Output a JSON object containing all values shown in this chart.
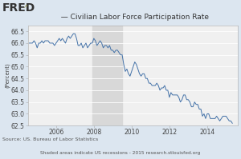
{
  "title": "  — Civilian Labor Force Participation Rate",
  "ylabel": "(Percent)",
  "source_text": "Source: US. Bureau of Labor Statistics",
  "footnote_text": "Shaded areas indicate US recessions - 2015 research.stlouisfed.org",
  "ylim": [
    62.5,
    66.75
  ],
  "yticks": [
    62.5,
    63.0,
    63.5,
    64.0,
    64.5,
    65.0,
    65.5,
    66.0,
    66.5
  ],
  "xlim_start": 2004.5,
  "xlim_end": 2015.6,
  "xticks": [
    2006,
    2008,
    2010,
    2012,
    2014
  ],
  "recession_start": 2007.917,
  "recession_end": 2009.5,
  "line_color": "#4472a8",
  "recession_color": "#d8d8d8",
  "bg_color": "#dce6f0",
  "plot_bg_color": "#f0f0f0",
  "title_fontsize": 6.5,
  "axis_fontsize": 5.5,
  "ylabel_fontsize": 5.0,
  "source_fontsize": 4.5,
  "footnote_fontsize": 4.2,
  "fred_fontsize": 10,
  "series": [
    [
      2004.583,
      66.0
    ],
    [
      2004.667,
      66.0
    ],
    [
      2004.75,
      66.0
    ],
    [
      2004.833,
      66.1
    ],
    [
      2004.917,
      66.0
    ],
    [
      2005.0,
      65.8
    ],
    [
      2005.083,
      66.0
    ],
    [
      2005.167,
      66.0
    ],
    [
      2005.25,
      66.1
    ],
    [
      2005.333,
      66.0
    ],
    [
      2005.417,
      66.1
    ],
    [
      2005.5,
      66.1
    ],
    [
      2005.583,
      66.1
    ],
    [
      2005.667,
      66.0
    ],
    [
      2005.75,
      66.0
    ],
    [
      2005.833,
      66.0
    ],
    [
      2005.917,
      65.9
    ],
    [
      2006.0,
      66.0
    ],
    [
      2006.083,
      66.1
    ],
    [
      2006.167,
      66.2
    ],
    [
      2006.25,
      66.1
    ],
    [
      2006.333,
      66.2
    ],
    [
      2006.417,
      66.1
    ],
    [
      2006.5,
      66.0
    ],
    [
      2006.583,
      66.2
    ],
    [
      2006.667,
      66.3
    ],
    [
      2006.75,
      66.2
    ],
    [
      2006.833,
      66.3
    ],
    [
      2006.917,
      66.4
    ],
    [
      2007.0,
      66.4
    ],
    [
      2007.083,
      66.2
    ],
    [
      2007.167,
      65.9
    ],
    [
      2007.25,
      65.9
    ],
    [
      2007.333,
      66.0
    ],
    [
      2007.417,
      65.8
    ],
    [
      2007.5,
      65.9
    ],
    [
      2007.583,
      66.0
    ],
    [
      2007.667,
      65.8
    ],
    [
      2007.75,
      65.9
    ],
    [
      2007.833,
      66.0
    ],
    [
      2007.917,
      66.0
    ],
    [
      2008.0,
      66.2
    ],
    [
      2008.083,
      66.1
    ],
    [
      2008.167,
      65.9
    ],
    [
      2008.25,
      66.0
    ],
    [
      2008.333,
      66.1
    ],
    [
      2008.417,
      66.0
    ],
    [
      2008.5,
      65.8
    ],
    [
      2008.583,
      65.9
    ],
    [
      2008.667,
      65.9
    ],
    [
      2008.75,
      65.8
    ],
    [
      2008.833,
      65.9
    ],
    [
      2008.917,
      65.7
    ],
    [
      2009.0,
      65.7
    ],
    [
      2009.083,
      65.6
    ],
    [
      2009.167,
      65.7
    ],
    [
      2009.25,
      65.7
    ],
    [
      2009.333,
      65.6
    ],
    [
      2009.417,
      65.5
    ],
    [
      2009.5,
      65.5
    ],
    [
      2009.583,
      65.1
    ],
    [
      2009.667,
      64.8
    ],
    [
      2009.75,
      64.9
    ],
    [
      2009.833,
      64.7
    ],
    [
      2009.917,
      64.6
    ],
    [
      2010.0,
      64.8
    ],
    [
      2010.083,
      65.0
    ],
    [
      2010.167,
      65.2
    ],
    [
      2010.25,
      65.1
    ],
    [
      2010.333,
      64.9
    ],
    [
      2010.417,
      64.7
    ],
    [
      2010.5,
      64.6
    ],
    [
      2010.583,
      64.7
    ],
    [
      2010.667,
      64.7
    ],
    [
      2010.75,
      64.5
    ],
    [
      2010.833,
      64.5
    ],
    [
      2010.917,
      64.3
    ],
    [
      2011.0,
      64.3
    ],
    [
      2011.083,
      64.2
    ],
    [
      2011.167,
      64.2
    ],
    [
      2011.25,
      64.2
    ],
    [
      2011.333,
      64.3
    ],
    [
      2011.417,
      64.2
    ],
    [
      2011.5,
      64.0
    ],
    [
      2011.583,
      64.1
    ],
    [
      2011.667,
      64.1
    ],
    [
      2011.75,
      64.2
    ],
    [
      2011.833,
      64.0
    ],
    [
      2011.917,
      64.0
    ],
    [
      2012.0,
      63.7
    ],
    [
      2012.083,
      63.9
    ],
    [
      2012.167,
      63.8
    ],
    [
      2012.25,
      63.8
    ],
    [
      2012.333,
      63.8
    ],
    [
      2012.417,
      63.8
    ],
    [
      2012.5,
      63.7
    ],
    [
      2012.583,
      63.5
    ],
    [
      2012.667,
      63.6
    ],
    [
      2012.75,
      63.8
    ],
    [
      2012.833,
      63.8
    ],
    [
      2012.917,
      63.6
    ],
    [
      2013.0,
      63.6
    ],
    [
      2013.083,
      63.5
    ],
    [
      2013.167,
      63.3
    ],
    [
      2013.25,
      63.3
    ],
    [
      2013.333,
      63.5
    ],
    [
      2013.417,
      63.4
    ],
    [
      2013.5,
      63.4
    ],
    [
      2013.583,
      63.2
    ],
    [
      2013.667,
      63.2
    ],
    [
      2013.75,
      62.9
    ],
    [
      2013.833,
      63.0
    ],
    [
      2013.917,
      62.8
    ],
    [
      2014.0,
      63.0
    ],
    [
      2014.083,
      63.0
    ],
    [
      2014.167,
      62.8
    ],
    [
      2014.25,
      62.8
    ],
    [
      2014.333,
      62.8
    ],
    [
      2014.417,
      62.8
    ],
    [
      2014.5,
      62.9
    ],
    [
      2014.583,
      62.8
    ],
    [
      2014.667,
      62.7
    ],
    [
      2014.75,
      62.8
    ],
    [
      2014.833,
      62.9
    ],
    [
      2014.917,
      62.9
    ],
    [
      2015.0,
      62.9
    ],
    [
      2015.083,
      62.8
    ],
    [
      2015.167,
      62.7
    ],
    [
      2015.25,
      62.7
    ],
    [
      2015.333,
      62.6
    ]
  ]
}
